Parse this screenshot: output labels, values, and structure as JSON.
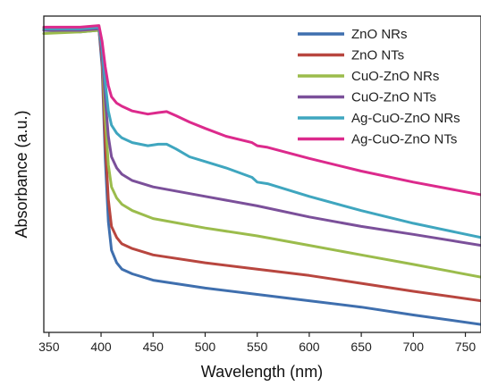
{
  "chart_data": {
    "type": "line",
    "title": "",
    "xlabel": "Wavelength (nm)",
    "ylabel": "Absorbance (a.u.)",
    "xlim": [
      345,
      765
    ],
    "ylim": [
      0,
      1
    ],
    "x_ticks": [
      350,
      400,
      450,
      500,
      550,
      600,
      650,
      700,
      750
    ],
    "y_tick_labels": false,
    "grid": false,
    "legend_position": "top-right",
    "series": [
      {
        "name": "ZnO NRs",
        "color": "#3f6fae",
        "x": [
          345,
          380,
          398,
          401,
          404,
          407,
          410,
          415,
          420,
          430,
          450,
          500,
          550,
          600,
          650,
          700,
          765
        ],
        "y": [
          0.955,
          0.95,
          0.955,
          0.84,
          0.55,
          0.35,
          0.26,
          0.22,
          0.2,
          0.185,
          0.165,
          0.14,
          0.12,
          0.1,
          0.08,
          0.055,
          0.025
        ]
      },
      {
        "name": "ZnO NTs",
        "color": "#b8463f",
        "x": [
          345,
          380,
          398,
          401,
          404,
          407,
          410,
          415,
          420,
          430,
          450,
          500,
          550,
          600,
          650,
          700,
          765
        ],
        "y": [
          0.96,
          0.955,
          0.96,
          0.86,
          0.6,
          0.42,
          0.335,
          0.3,
          0.28,
          0.265,
          0.245,
          0.22,
          0.2,
          0.18,
          0.155,
          0.13,
          0.1
        ]
      },
      {
        "name": "CuO-ZnO NRs",
        "color": "#9bbc4c",
        "x": [
          345,
          380,
          398,
          401,
          404,
          407,
          410,
          415,
          420,
          430,
          450,
          500,
          550,
          600,
          650,
          700,
          765
        ],
        "y": [
          0.945,
          0.95,
          0.955,
          0.88,
          0.68,
          0.53,
          0.46,
          0.425,
          0.405,
          0.385,
          0.36,
          0.33,
          0.305,
          0.275,
          0.245,
          0.215,
          0.175
        ]
      },
      {
        "name": "CuO-ZnO NTs",
        "color": "#7b509a",
        "x": [
          345,
          380,
          398,
          401,
          404,
          407,
          410,
          415,
          420,
          430,
          450,
          500,
          550,
          600,
          650,
          700,
          765
        ],
        "y": [
          0.955,
          0.955,
          0.96,
          0.88,
          0.74,
          0.62,
          0.555,
          0.52,
          0.5,
          0.48,
          0.46,
          0.43,
          0.4,
          0.365,
          0.335,
          0.31,
          0.275
        ]
      },
      {
        "name": "Ag-CuO-ZnO NRs",
        "color": "#3fa6bf",
        "x": [
          345,
          380,
          398,
          401,
          404,
          407,
          410,
          415,
          420,
          430,
          445,
          455,
          463,
          472,
          485,
          500,
          520,
          545,
          550,
          560,
          600,
          650,
          700,
          765
        ],
        "y": [
          0.96,
          0.96,
          0.965,
          0.9,
          0.79,
          0.7,
          0.655,
          0.63,
          0.615,
          0.6,
          0.59,
          0.595,
          0.595,
          0.58,
          0.555,
          0.54,
          0.52,
          0.49,
          0.475,
          0.47,
          0.43,
          0.385,
          0.345,
          0.3
        ]
      },
      {
        "name": "Ag-CuO-ZnO NTs",
        "color": "#dc2a8c",
        "x": [
          345,
          380,
          398,
          401,
          404,
          407,
          410,
          415,
          420,
          430,
          445,
          455,
          463,
          472,
          485,
          500,
          520,
          545,
          550,
          560,
          600,
          650,
          700,
          765
        ],
        "y": [
          0.965,
          0.965,
          0.97,
          0.92,
          0.84,
          0.78,
          0.745,
          0.725,
          0.715,
          0.7,
          0.69,
          0.695,
          0.698,
          0.685,
          0.665,
          0.645,
          0.62,
          0.6,
          0.59,
          0.585,
          0.55,
          0.51,
          0.475,
          0.435
        ]
      }
    ]
  }
}
